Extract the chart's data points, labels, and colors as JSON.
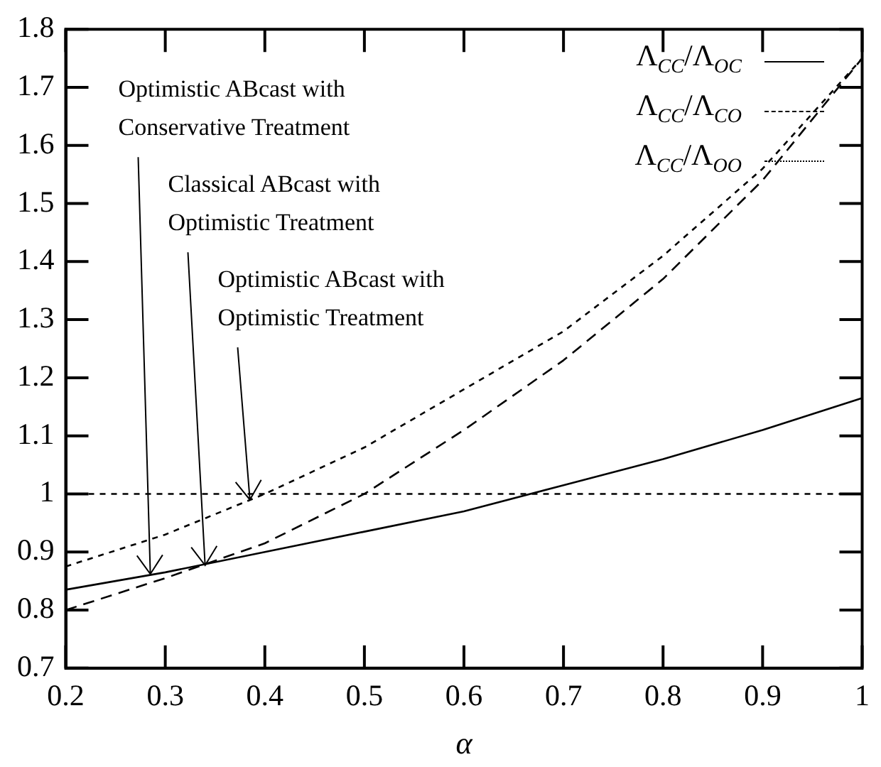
{
  "chart_data": {
    "type": "line",
    "xlabel": "α",
    "x": [
      0.2,
      0.3,
      0.4,
      0.5,
      0.6,
      0.7,
      0.8,
      0.9,
      1.0
    ],
    "series": [
      {
        "name": "Λ$_{CC}$/Λ$_{OC}$",
        "color": "#000000",
        "line_style": "solid",
        "values": [
          0.835,
          0.865,
          0.9,
          0.935,
          0.97,
          1.015,
          1.06,
          1.11,
          1.165
        ]
      },
      {
        "name": "Λ$_{CC}$/Λ$_{CO}$",
        "color": "#000000",
        "line_style": "dashed",
        "values": [
          0.8,
          0.855,
          0.915,
          1.0,
          1.11,
          1.23,
          1.37,
          1.54,
          1.75
        ]
      },
      {
        "name": "Λ$_{CC}$/Λ$_{OO}$",
        "color": "#000000",
        "line_style": "dotted",
        "values": [
          0.875,
          0.93,
          1.0,
          1.08,
          1.18,
          1.28,
          1.41,
          1.56,
          1.75
        ]
      }
    ],
    "xlim": [
      0.2,
      1
    ],
    "xticks": [
      0.2,
      0.3,
      0.4,
      0.5,
      0.6,
      0.7,
      0.8,
      0.9,
      1
    ],
    "ylim": [
      0.7,
      1.8
    ],
    "yticks": [
      0.7,
      0.8,
      0.9,
      1,
      1.1,
      1.2,
      1.3,
      1.4,
      1.5,
      1.6,
      1.7,
      1.8
    ],
    "ref_lines": [
      {
        "axis": "y",
        "value": 1,
        "line_style": "dotted",
        "color": "#000000"
      }
    ],
    "annotations": [
      {
        "text": "Optimistic ABcast with\nConservative Treatment",
        "x": 0.285,
        "y": 0.862
      },
      {
        "text": "Classical ABcast with\nOptimistic Treatment",
        "x": 0.34,
        "y": 0.877
      },
      {
        "text": "Optimistic ABcast with\nOptimistic Treatment",
        "x": 0.385,
        "y": 0.99
      }
    ],
    "grid": false,
    "legend": "top right",
    "marker": "none"
  }
}
